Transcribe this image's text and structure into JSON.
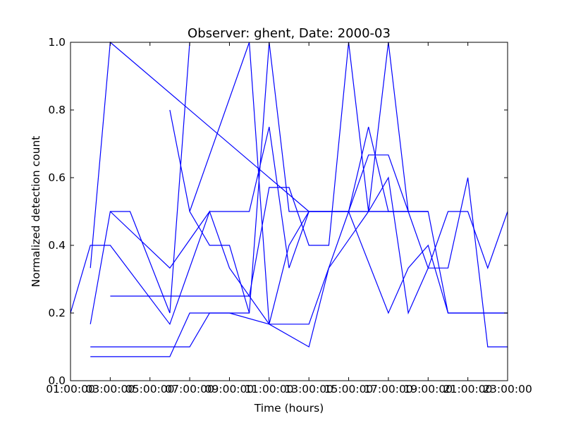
{
  "chart_data": {
    "type": "line",
    "title": "Observer: ghent, Date: 2000-03",
    "xlabel": "Time (hours)",
    "ylabel": "Normalized detection count",
    "xlim": [
      1,
      23
    ],
    "ylim": [
      0.0,
      1.0
    ],
    "x_ticks": [
      1,
      3,
      5,
      7,
      9,
      11,
      13,
      15,
      17,
      19,
      21,
      23
    ],
    "x_tick_labels": [
      "01:00:00",
      "03:00:00",
      "05:00:00",
      "07:00:00",
      "09:00:00",
      "11:00:00",
      "13:00:00",
      "15:00:00",
      "17:00:00",
      "19:00:00",
      "21:00:00",
      "23:00:00"
    ],
    "y_ticks": [
      0.0,
      0.2,
      0.4,
      0.6,
      0.8,
      1.0
    ],
    "y_tick_labels": [
      "0.0",
      "0.2",
      "0.4",
      "0.6",
      "0.8",
      "1.0"
    ],
    "grid": false,
    "line_color": "#0000ff",
    "series": [
      {
        "x": [
          2,
          3,
          13,
          19,
          20,
          23
        ],
        "y": [
          0.333,
          1.0,
          0.5,
          0.5,
          0.2,
          0.2
        ]
      },
      {
        "x": [
          2,
          3,
          4,
          6,
          7
        ],
        "y": [
          0.167,
          0.5,
          0.5,
          0.2,
          1.0
        ]
      },
      {
        "x": [
          1,
          2,
          3,
          6,
          8,
          9,
          11,
          12,
          13,
          15,
          17,
          18,
          19,
          20,
          21,
          22,
          23
        ],
        "y": [
          0.2,
          0.4,
          0.4,
          0.167,
          0.5,
          0.333,
          0.167,
          0.167,
          0.167,
          0.5,
          0.2,
          0.333,
          0.4,
          0.2,
          0.2,
          0.2,
          0.2
        ]
      },
      {
        "x": [
          3,
          7,
          10,
          11,
          12,
          13,
          14,
          15,
          16,
          17,
          18,
          19
        ],
        "y": [
          0.25,
          0.25,
          0.25,
          0.571,
          0.571,
          0.4,
          0.4,
          1.0,
          0.5,
          1.0,
          0.5,
          0.5
        ]
      },
      {
        "x": [
          2,
          6,
          7,
          9,
          10,
          11,
          12,
          14,
          15,
          16,
          17,
          18,
          19
        ],
        "y": [
          0.071,
          0.071,
          0.2,
          0.2,
          0.2,
          1.0,
          0.5,
          0.5,
          0.5,
          0.5,
          0.5,
          0.5,
          0.5
        ]
      },
      {
        "x": [
          2,
          3,
          5,
          6,
          7,
          8,
          9,
          11,
          13,
          14,
          16,
          17,
          18,
          19,
          20,
          21,
          22,
          23
        ],
        "y": [
          0.1,
          0.1,
          0.1,
          0.1,
          0.1,
          0.2,
          0.2,
          0.167,
          0.1,
          0.333,
          0.5,
          0.6,
          0.2,
          0.333,
          0.333,
          0.6,
          0.1,
          0.1
        ]
      },
      {
        "x": [
          6,
          7,
          8,
          9,
          10
        ],
        "y": [
          0.8,
          0.5,
          0.4,
          0.4,
          0.2
        ]
      },
      {
        "x": [
          7,
          10,
          11,
          12,
          13,
          14,
          15,
          16,
          17,
          18
        ],
        "y": [
          0.5,
          1.0,
          0.167,
          0.4,
          0.5,
          0.5,
          0.5,
          0.667,
          0.667,
          0.5
        ]
      },
      {
        "x": [
          3,
          6,
          8,
          9,
          10,
          11,
          12,
          13,
          14,
          15,
          16,
          17,
          18,
          19,
          20,
          21,
          22,
          23
        ],
        "y": [
          0.5,
          0.333,
          0.5,
          0.5,
          0.5,
          0.75,
          0.333,
          0.5,
          0.5,
          0.5,
          0.75,
          0.5,
          0.5,
          0.333,
          0.5,
          0.5,
          0.333,
          0.5
        ]
      }
    ]
  }
}
